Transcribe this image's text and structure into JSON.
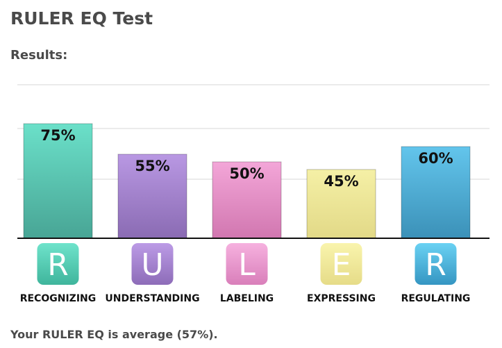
{
  "header": {
    "title": "RULER EQ Test",
    "results_label": "Results:"
  },
  "chart_data": {
    "type": "bar",
    "categories": [
      "RECOGNIZING",
      "UNDERSTANDING",
      "LABELING",
      "EXPRESSING",
      "REGULATING"
    ],
    "letters": [
      "R",
      "U",
      "L",
      "E",
      "R"
    ],
    "values": [
      75,
      55,
      50,
      45,
      60
    ],
    "value_labels": [
      "75%",
      "55%",
      "50%",
      "45%",
      "60%"
    ],
    "ylim": [
      0,
      100
    ],
    "grid": true,
    "colors": [
      {
        "top": "#6be0c9",
        "bottom": "#48a595",
        "badge_top": "#6fe3cb",
        "badge_bottom": "#3fb59c"
      },
      {
        "top": "#b998e3",
        "bottom": "#8a6bb3",
        "badge_top": "#bc9be6",
        "badge_bottom": "#8d6cb8"
      },
      {
        "top": "#f3a6d8",
        "bottom": "#d177b0",
        "badge_top": "#f6b1df",
        "badge_bottom": "#d97fba"
      },
      {
        "top": "#f5f0a6",
        "bottom": "#e2d987",
        "badge_top": "#f9f4ad",
        "badge_bottom": "#e6dc88"
      },
      {
        "top": "#63c5ec",
        "bottom": "#3b91b8",
        "badge_top": "#6ad2f3",
        "badge_bottom": "#3596c2"
      }
    ]
  },
  "footer": {
    "summary": "Your RULER EQ is average (57%)."
  }
}
